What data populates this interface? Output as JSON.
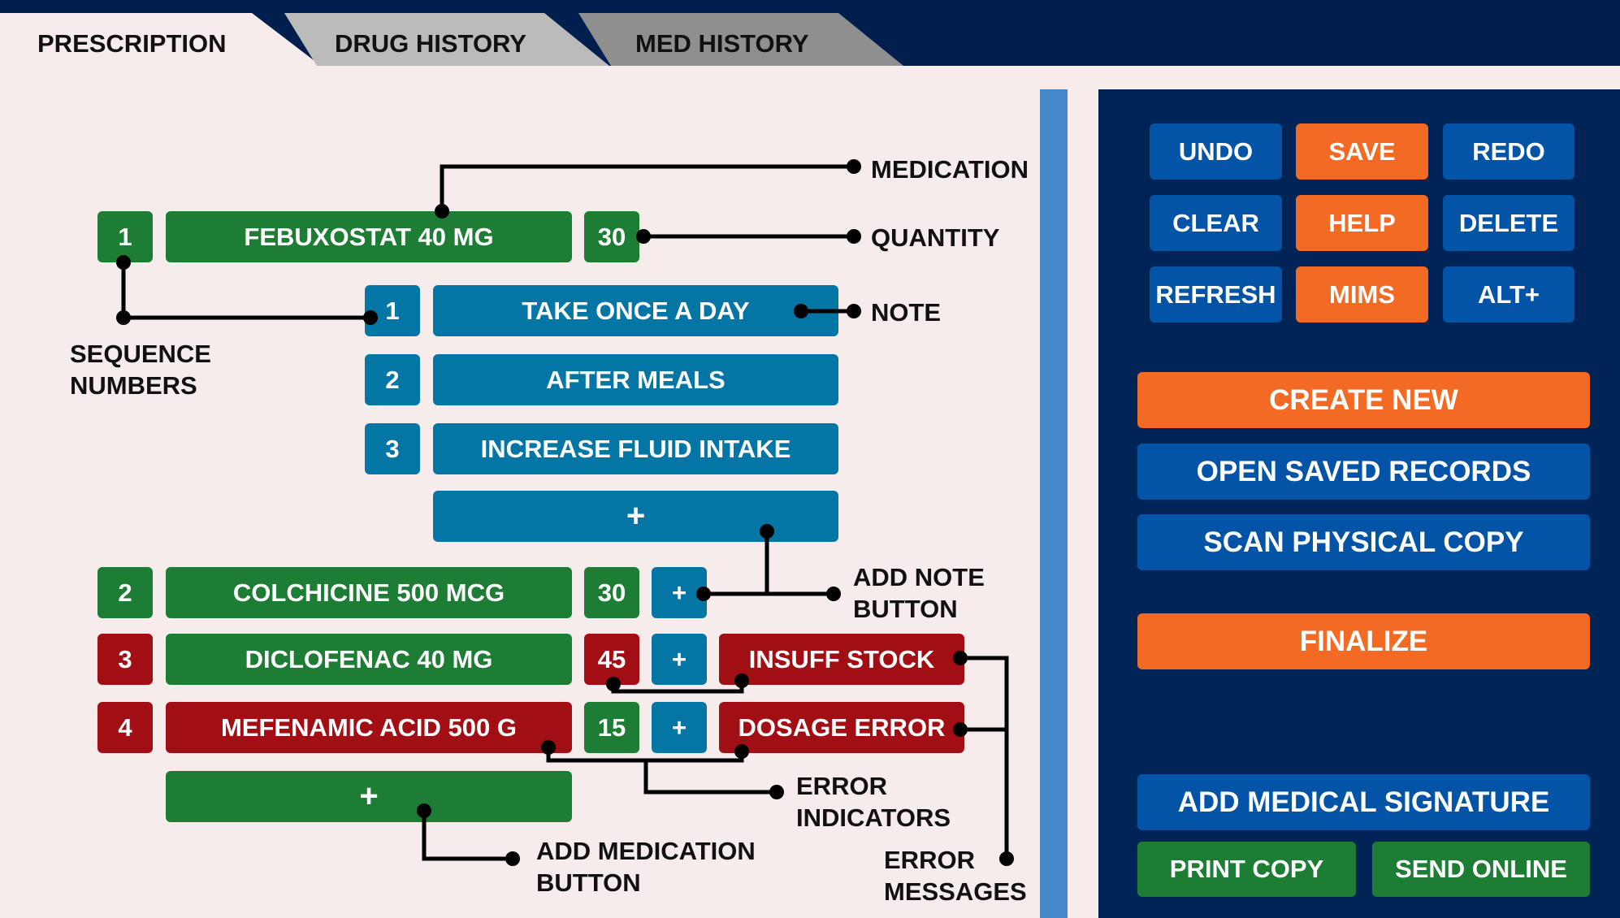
{
  "tabs": [
    "PRESCRIPTION",
    "DRUG HISTORY",
    "MED HISTORY"
  ],
  "medications": [
    {
      "seq": "1",
      "name": "FEBUXOSTAT 40 MG",
      "qty": "30"
    },
    {
      "seq": "2",
      "name": "COLCHICINE 500 MCG",
      "qty": "30"
    },
    {
      "seq": "3",
      "name": "DICLOFENAC 40 MG",
      "qty": "45"
    },
    {
      "seq": "4",
      "name": "MEFENAMIC ACID 500 G",
      "qty": "15"
    }
  ],
  "notes": [
    {
      "seq": "1",
      "text": "TAKE ONCE A DAY"
    },
    {
      "seq": "2",
      "text": "AFTER MEALS"
    },
    {
      "seq": "3",
      "text": "INCREASE FLUID INTAKE"
    }
  ],
  "add_symbol": "+",
  "errors": {
    "row3": "INSUFF STOCK",
    "row4": "DOSAGE ERROR"
  },
  "labels": {
    "medication": "MEDICATION",
    "quantity": "QUANTITY",
    "note": "NOTE",
    "sequence_line1": "SEQUENCE",
    "sequence_line2": "NUMBERS",
    "add_note_line1": "ADD NOTE",
    "add_note_line2": "BUTTON",
    "error_indicators_line1": "ERROR",
    "error_indicators_line2": "INDICATORS",
    "add_med_line1": "ADD MEDICATION",
    "add_med_line2": "BUTTON",
    "error_messages_line1": "ERROR",
    "error_messages_line2": "MESSAGES"
  },
  "actions": {
    "undo": "UNDO",
    "save": "SAVE",
    "redo": "REDO",
    "clear": "CLEAR",
    "help": "HELP",
    "delete": "DELETE",
    "refresh": "REFRESH",
    "mims": "MIMS",
    "alt": "ALT+",
    "create_new": "CREATE NEW",
    "open_saved": "OPEN SAVED RECORDS",
    "scan": "SCAN PHYSICAL COPY",
    "finalize": "FINALIZE",
    "add_signature": "ADD MEDICAL SIGNATURE",
    "print_copy": "PRINT COPY",
    "send_online": "SEND ONLINE"
  },
  "colors": {
    "navy": "#001F4E",
    "green": "#1D7D34",
    "red": "#A10E14",
    "teal": "#0476A6",
    "blue": "#0353A6",
    "orange": "#F26A24",
    "background": "#F5ECEB"
  }
}
